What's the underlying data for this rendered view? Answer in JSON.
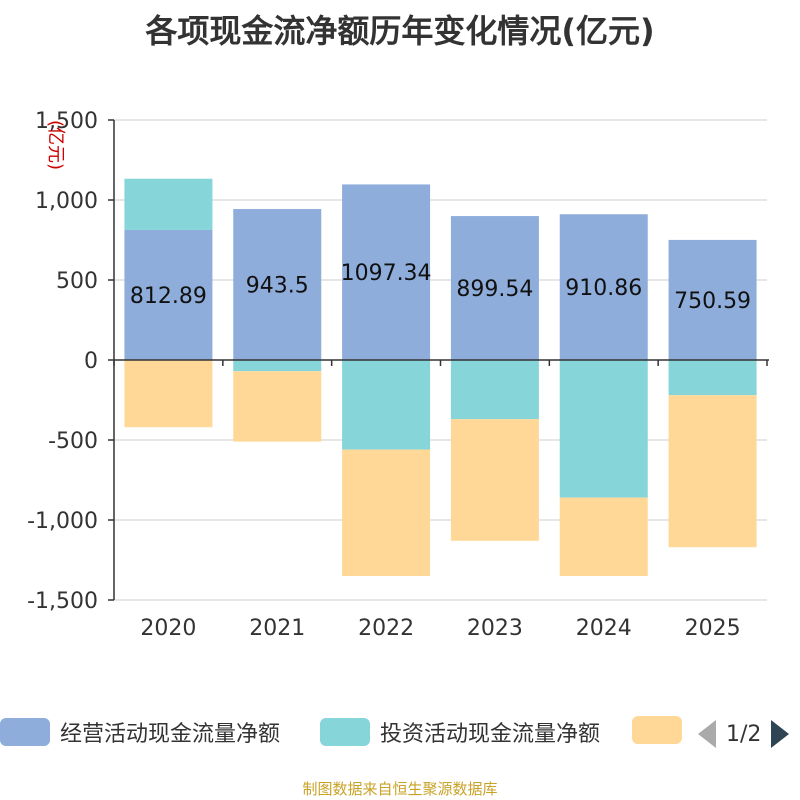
{
  "title": "各项现金流净额历年变化情况(亿元)",
  "source": "制图数据来自恒生聚源数据库",
  "pager": "1/2",
  "colors": {
    "operating": "#8eaddb",
    "investing": "#86d5d9",
    "financing": "#ffd898",
    "grid": "#cccccc",
    "axis": "#333333",
    "unit_label": "#cc0000"
  },
  "chart_data": {
    "type": "bar",
    "stacked": true,
    "ylabel": "(亿元)",
    "ylim": [
      -1500,
      1500
    ],
    "yticks": [
      1500,
      1000,
      500,
      0,
      -500,
      -1000,
      -1500
    ],
    "ytick_labels": [
      "1,500",
      "1,000",
      "500",
      "0",
      "-500",
      "-1,000",
      "-1,500"
    ],
    "categories": [
      "2020",
      "2021",
      "2022",
      "2023",
      "2024",
      "2025"
    ],
    "grid": true,
    "legend_position": "bottom",
    "series": [
      {
        "name": "经营活动现金流量净额",
        "values": [
          812.89,
          943.5,
          1097.34,
          899.54,
          910.86,
          750.59
        ],
        "labels": [
          "812.89",
          "943.5",
          "1097.34",
          "899.54",
          "910.86",
          "750.59"
        ]
      },
      {
        "name": "投资活动现金流量净额",
        "values": [
          320,
          -70,
          -560,
          -370,
          -860,
          -220
        ]
      },
      {
        "name": "",
        "values": [
          -420,
          -440,
          -790,
          -760,
          -490,
          -950
        ]
      }
    ]
  }
}
